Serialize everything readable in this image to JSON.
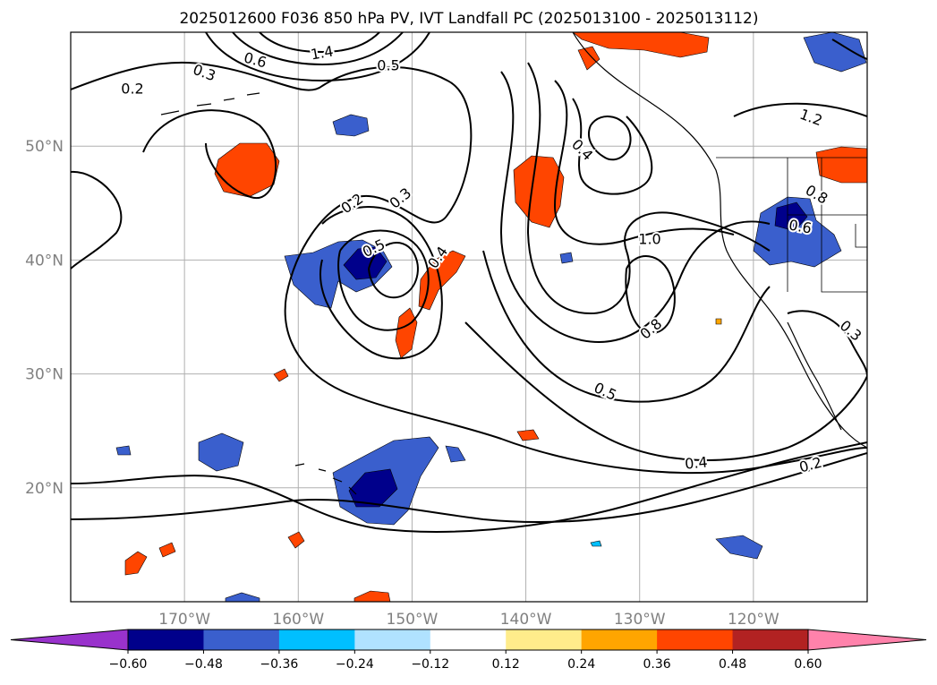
{
  "title": "2025012600 F036 850 hPa PV, IVT Landfall PC (2025013100 - 2025013112)",
  "map": {
    "lon_range": [
      -180,
      -110
    ],
    "lat_range": [
      10,
      60
    ],
    "lat_ticks": [
      {
        "value": 50,
        "label": "50°N"
      },
      {
        "value": 40,
        "label": "40°N"
      },
      {
        "value": 30,
        "label": "30°N"
      },
      {
        "value": 20,
        "label": "20°N"
      }
    ],
    "lon_ticks": [
      {
        "value": -170,
        "label": "170°W"
      },
      {
        "value": -160,
        "label": "160°W"
      },
      {
        "value": -150,
        "label": "150°W"
      },
      {
        "value": -140,
        "label": "140°W"
      },
      {
        "value": -130,
        "label": "130°W"
      },
      {
        "value": -120,
        "label": "120°W"
      }
    ],
    "gridlines": true,
    "contour_labels": [
      "0.2",
      "0.3",
      "0.6",
      "0.5",
      "1.4",
      "1.2",
      "0.2",
      "0.3",
      "0.4",
      "0.5",
      "0.4",
      "1.0",
      "0.8",
      "0.8",
      "0.6",
      "0.5",
      "0.4",
      "0.2",
      "0.3"
    ]
  },
  "colorbar": {
    "tick_labels": [
      "−0.60",
      "−0.48",
      "−0.36",
      "−0.24",
      "−0.12",
      "0.12",
      "0.24",
      "0.36",
      "0.48",
      "0.60"
    ],
    "colors": [
      "#9932cc",
      "#00008b",
      "#3a5fcd",
      "#00bfff",
      "#b0e2ff",
      "#ffffff",
      "#ffec8b",
      "#ffa500",
      "#ff4500",
      "#b22222",
      "#ff82ab"
    ]
  }
}
